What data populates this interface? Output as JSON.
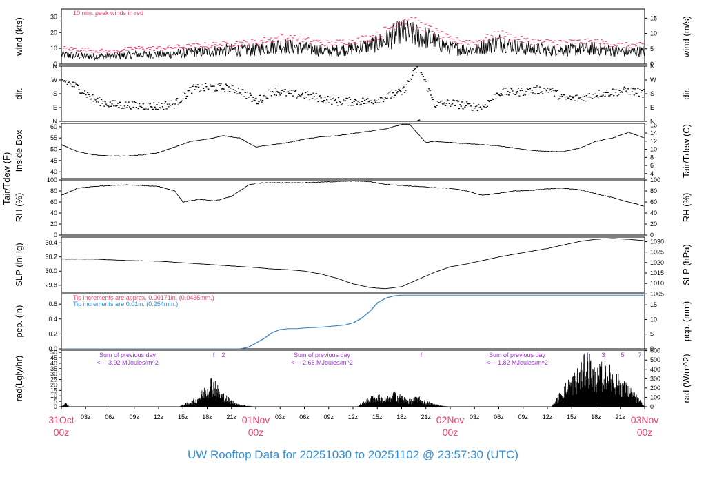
{
  "footer": "UW Rooftop Data for 20251030  to  20251102 @ 23:57:30  (UTC)",
  "colors": {
    "axis": "#000000",
    "trace": "#000000",
    "peak": "#e8436f",
    "precip": "#3b82c4",
    "note_red": "#e8436f",
    "note_blue": "#2f8fd6",
    "note_purple": "#9b30d9",
    "day_label": "#e8436f",
    "footer": "#2f8fd6"
  },
  "x_axis": {
    "hour_ticks": [
      "03z",
      "06z",
      "09z",
      "12z",
      "15z",
      "18z",
      "21z"
    ],
    "day_labels": [
      {
        "date": "31Oct",
        "hour": "00z",
        "t": 0
      },
      {
        "date": "01Nov",
        "hour": "00z",
        "t": 24
      },
      {
        "date": "02Nov",
        "hour": "00z",
        "t": 48
      },
      {
        "date": "03Nov",
        "hour": "00z",
        "t": 72
      }
    ]
  },
  "chart_data": [
    {
      "type": "line",
      "panel": "wind",
      "ylabel_left": "wind (kts)",
      "ylabel_right": "wind (m/s)",
      "left_ticks": [
        0,
        10,
        20,
        30
      ],
      "right_ticks": [
        0,
        5,
        10,
        15
      ],
      "ylim": [
        0,
        35
      ],
      "annotation": "10 min. peak winds in red",
      "series": [
        {
          "role": "mean",
          "x_hours": [
            0,
            3,
            6,
            9,
            12,
            15,
            18,
            21,
            24,
            27,
            30,
            33,
            36,
            39,
            42,
            45,
            48,
            51,
            54,
            57,
            60,
            63,
            66,
            69,
            72
          ],
          "values": [
            6,
            5,
            5,
            6,
            6,
            7,
            8,
            9,
            9,
            12,
            10,
            8,
            10,
            13,
            20,
            17,
            10,
            9,
            14,
            10,
            9,
            9,
            10,
            8,
            8
          ]
        },
        {
          "role": "peak",
          "x_hours": [
            0,
            3,
            6,
            9,
            12,
            15,
            18,
            21,
            24,
            27,
            30,
            33,
            36,
            39,
            42,
            45,
            48,
            51,
            54,
            57,
            60,
            63,
            66,
            69,
            72
          ],
          "values": [
            10,
            9,
            8,
            10,
            10,
            11,
            12,
            13,
            14,
            17,
            15,
            13,
            15,
            18,
            29,
            23,
            15,
            14,
            19,
            15,
            14,
            14,
            14,
            12,
            12
          ]
        }
      ]
    },
    {
      "type": "scatter",
      "panel": "dir",
      "ylabel_left": "dir.",
      "ylabel_right": "dir.",
      "left_ticks": [
        "N",
        "W",
        "S",
        "E",
        "N"
      ],
      "right_ticks": [
        "N",
        "W",
        "S",
        "E",
        "N"
      ],
      "ylim": [
        0,
        360
      ],
      "series": [
        {
          "x_hours": [
            0,
            2,
            4,
            6,
            8,
            10,
            12,
            14,
            16,
            18,
            20,
            22,
            24,
            26,
            28,
            30,
            32,
            34,
            36,
            38,
            40,
            42,
            44,
            46,
            48,
            50,
            52,
            54,
            56,
            58,
            60,
            62,
            64,
            66,
            68,
            70,
            72
          ],
          "values": [
            270,
            220,
            140,
            110,
            105,
            100,
            100,
            115,
            210,
            220,
            220,
            200,
            130,
            200,
            180,
            170,
            150,
            130,
            130,
            130,
            160,
            190,
            360,
            110,
            120,
            100,
            95,
            190,
            190,
            200,
            210,
            150,
            150,
            180,
            190,
            200,
            180
          ]
        }
      ]
    },
    {
      "type": "line",
      "panel": "temp",
      "ylabel_left": [
        "Tair/Tdew (F)",
        "Inside Box"
      ],
      "ylabel_right": "Tair/Tdew (C)",
      "left_ticks": [
        40,
        45,
        50,
        55,
        60
      ],
      "right_ticks": [
        4,
        6,
        8,
        10,
        12,
        14,
        16
      ],
      "ylim": [
        37,
        61.5
      ],
      "series": [
        {
          "x_hours": [
            0,
            2,
            4,
            6,
            8,
            10,
            12,
            14,
            16,
            18,
            20,
            22,
            24,
            26,
            28,
            30,
            32,
            34,
            36,
            38,
            40,
            42,
            43,
            45,
            46,
            48,
            50,
            52,
            54,
            56,
            58,
            60,
            62,
            64,
            66,
            68,
            70,
            72
          ],
          "values": [
            52,
            49,
            47.5,
            47,
            47,
            47.5,
            48.5,
            51,
            53.5,
            54.5,
            56,
            55,
            51,
            52,
            53,
            54.5,
            55.5,
            56,
            57,
            58,
            59,
            61,
            61,
            53,
            53.5,
            53,
            52.5,
            52,
            51.5,
            50.5,
            49.5,
            49,
            49,
            50.5,
            53.5,
            55,
            57.5,
            55
          ]
        }
      ]
    },
    {
      "type": "line",
      "panel": "rh",
      "ylabel_left": "RH (%)",
      "ylabel_right": "RH (%)",
      "left_ticks": [
        0,
        20,
        40,
        60,
        80,
        100
      ],
      "right_ticks": [
        0,
        20,
        40,
        60,
        80,
        100
      ],
      "ylim": [
        0,
        100
      ],
      "series": [
        {
          "x_hours": [
            0,
            2,
            4,
            6,
            8,
            10,
            12,
            14,
            15,
            17,
            19,
            21,
            23,
            24,
            26,
            28,
            30,
            32,
            34,
            36,
            38,
            40,
            42,
            44,
            46,
            48,
            50,
            52,
            54,
            56,
            58,
            60,
            62,
            64,
            66,
            68,
            70,
            72
          ],
          "values": [
            72,
            85,
            88,
            90,
            91,
            90,
            88,
            80,
            60,
            65,
            62,
            70,
            90,
            94,
            95,
            95,
            95,
            96,
            97,
            98,
            97,
            92,
            90,
            88,
            86,
            85,
            80,
            72,
            76,
            80,
            81,
            84,
            85,
            82,
            75,
            68,
            60,
            52
          ]
        }
      ]
    },
    {
      "type": "line",
      "panel": "slp",
      "ylabel_left": "SLP (inHg)",
      "ylabel_right": "SLP (hPa)",
      "left_ticks": [
        29.8,
        30.0,
        30.2,
        30.4
      ],
      "right_ticks": [
        1005,
        1010,
        1015,
        1020,
        1025,
        1030
      ],
      "ylim": [
        29.7,
        30.48
      ],
      "series": [
        {
          "x_hours": [
            0,
            4,
            8,
            12,
            16,
            20,
            24,
            26,
            28,
            30,
            32,
            34,
            36,
            38,
            40,
            42,
            44,
            46,
            48,
            50,
            52,
            54,
            56,
            58,
            60,
            62,
            64,
            66,
            68,
            70,
            72
          ],
          "values": [
            30.17,
            30.17,
            30.15,
            30.14,
            30.11,
            30.08,
            30.05,
            30.03,
            30.02,
            30.0,
            29.96,
            29.9,
            29.82,
            29.77,
            29.75,
            29.78,
            29.88,
            29.98,
            30.06,
            30.1,
            30.15,
            30.2,
            30.24,
            30.28,
            30.32,
            30.37,
            30.42,
            30.45,
            30.46,
            30.45,
            30.43
          ]
        }
      ]
    },
    {
      "type": "area",
      "panel": "pcp",
      "ylabel_left": "pcp. (in)",
      "ylabel_right": "pcp. (mm)",
      "left_ticks": [
        0.0,
        0.2,
        0.4,
        0.6
      ],
      "right_ticks": [
        0,
        5,
        10,
        15
      ],
      "ylim": [
        0,
        0.74
      ],
      "annotations": [
        "Tip increments are approx. 0.00171in. (0.0435mm.)",
        "Tip increments are 0.01in. (0.254mm.)"
      ],
      "series": [
        {
          "x_hours": [
            0,
            22,
            23,
            24,
            25,
            26,
            27,
            28,
            29,
            30,
            32,
            34,
            35,
            36,
            37,
            38,
            39,
            40,
            41,
            42,
            43,
            72
          ],
          "values": [
            0,
            0,
            0.02,
            0.08,
            0.14,
            0.22,
            0.26,
            0.27,
            0.27,
            0.28,
            0.29,
            0.31,
            0.32,
            0.35,
            0.41,
            0.5,
            0.62,
            0.68,
            0.71,
            0.72,
            0.72,
            0.72
          ]
        }
      ]
    },
    {
      "type": "area",
      "panel": "rad",
      "ylabel_left": "rad(Lgly/hr)",
      "ylabel_right": "rad (W/m^2)",
      "left_ticks": [
        0,
        5,
        10,
        15,
        20,
        25,
        30,
        35,
        40,
        45,
        50
      ],
      "right_ticks": [
        0,
        100,
        200,
        300,
        400,
        500,
        600
      ],
      "ylim": [
        0,
        52
      ],
      "annotations": [
        {
          "line1": "Sum of previous day",
          "line2": "<--- 3.92 MJoules/m^2"
        },
        {
          "line1": "Sum of previous day",
          "line2": "<--- 2.66 MJoules/m^2"
        },
        {
          "line1": "Sum of previous day",
          "line2": "<--- 1.82 MJoules/m^2"
        }
      ],
      "markers": [
        "f",
        "2",
        "f",
        "f",
        "3",
        "5",
        "7"
      ],
      "series": [
        {
          "x_hours": [
            0,
            0.5,
            1,
            14.5,
            15,
            16,
            17,
            18,
            18.5,
            19,
            19.5,
            20,
            21,
            22,
            23,
            24,
            36.5,
            37,
            38,
            39,
            40,
            41,
            42,
            43,
            44,
            45,
            46,
            47,
            48,
            60.5,
            61,
            62,
            63,
            64,
            65,
            66,
            67,
            68,
            69,
            70,
            71,
            72
          ],
          "values": [
            0,
            4,
            0,
            0,
            2,
            5,
            10,
            20,
            26,
            24,
            14,
            12,
            6,
            2,
            1,
            0,
            0,
            3,
            8,
            11,
            7,
            13,
            10,
            6,
            9,
            5,
            3,
            1,
            0,
            0,
            5,
            18,
            26,
            35,
            48,
            30,
            40,
            32,
            25,
            18,
            10,
            0
          ]
        }
      ]
    }
  ]
}
